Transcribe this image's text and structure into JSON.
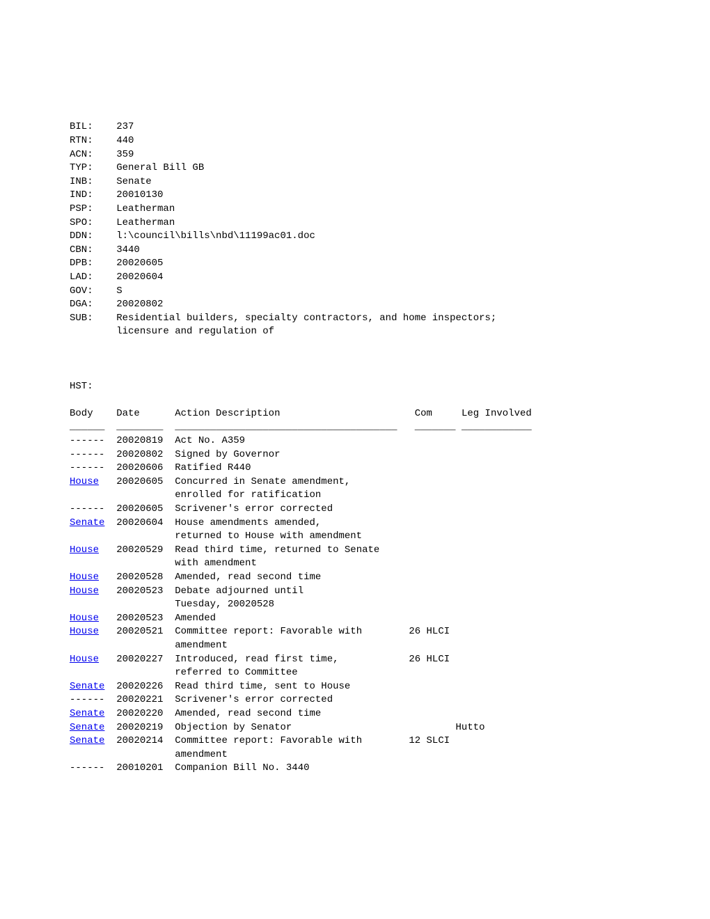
{
  "meta": {
    "BIL": "237",
    "RTN": "440",
    "ACN": "359",
    "TYP": "General Bill GB",
    "INB": "Senate",
    "IND": "20010130",
    "PSP": "Leatherman",
    "SPO": "Leatherman",
    "DDN": "l:\\council\\bills\\nbd\\11199ac01.doc",
    "CBN": "3440",
    "DPB": "20020605",
    "LAD": "20020604",
    "GOV": "S",
    "DGA": "20020802",
    "SUB1": "Residential builders, specialty contractors, and home inspectors;",
    "SUB2": "licensure and regulation of"
  },
  "hst_label": "HST:",
  "header": {
    "body": "Body",
    "date": "Date",
    "action": "Action Description",
    "com": "Com",
    "leg": "Leg Involved"
  },
  "div": {
    "body": "______",
    "date": "________",
    "action": "______________________________________",
    "com": "_______",
    "leg": "____________"
  },
  "rows": {
    "r0": {
      "body": "------",
      "date": "20020819",
      "a1": "Act No. A359",
      "com": "",
      "leg": ""
    },
    "r1": {
      "body": "------",
      "date": "20020802",
      "a1": "Signed by Governor",
      "com": "",
      "leg": ""
    },
    "r2": {
      "body": "------",
      "date": "20020606",
      "a1": "Ratified R440",
      "com": "",
      "leg": ""
    },
    "r3": {
      "body": "House",
      "date": "20020605",
      "a1": "Concurred in Senate amendment,",
      "a2": "enrolled for ratification",
      "com": "",
      "leg": ""
    },
    "r4": {
      "body": "------",
      "date": "20020605",
      "a1": "Scrivener's error corrected",
      "com": "",
      "leg": ""
    },
    "r5": {
      "body": "Senate",
      "date": "20020604",
      "a1": "House amendments amended,",
      "a2": "returned to House with amendment",
      "com": "",
      "leg": ""
    },
    "r6": {
      "body": "House",
      "date": "20020529",
      "a1": "Read third time, returned to Senate",
      "a2": "with amendment",
      "com": "",
      "leg": ""
    },
    "r7": {
      "body": "House",
      "date": "20020528",
      "a1": "Amended, read second time",
      "com": "",
      "leg": ""
    },
    "r8": {
      "body": "House",
      "date": "20020523",
      "a1": "Debate adjourned until",
      "a2": "Tuesday, 20020528",
      "com": "",
      "leg": ""
    },
    "r9": {
      "body": "House",
      "date": "20020523",
      "a1": "Amended",
      "com": "",
      "leg": ""
    },
    "r10": {
      "body": "House",
      "date": "20020521",
      "a1": "Committee report: Favorable with",
      "a2": "amendment",
      "com": "26 HLCI",
      "leg": ""
    },
    "r11": {
      "body": "House",
      "date": "20020227",
      "a1": "Introduced, read first time,",
      "a2": "referred to Committee",
      "com": "26 HLCI",
      "leg": ""
    },
    "r12": {
      "body": "Senate",
      "date": "20020226",
      "a1": "Read third time, sent to House",
      "com": "",
      "leg": ""
    },
    "r13": {
      "body": "------",
      "date": "20020221",
      "a1": "Scrivener's error corrected",
      "com": "",
      "leg": ""
    },
    "r14": {
      "body": "Senate",
      "date": "20020220",
      "a1": "Amended, read second time",
      "com": "",
      "leg": ""
    },
    "r15": {
      "body": "Senate",
      "date": "20020219",
      "a1": "Objection by Senator",
      "com": "",
      "leg": "Hutto"
    },
    "r16": {
      "body": "Senate",
      "date": "20020214",
      "a1": "Committee report: Favorable with",
      "a2": "amendment",
      "com": "12 SLCI",
      "leg": ""
    },
    "r17": {
      "body": "------",
      "date": "20010201",
      "a1": "Companion Bill No. 3440",
      "com": "",
      "leg": ""
    }
  }
}
